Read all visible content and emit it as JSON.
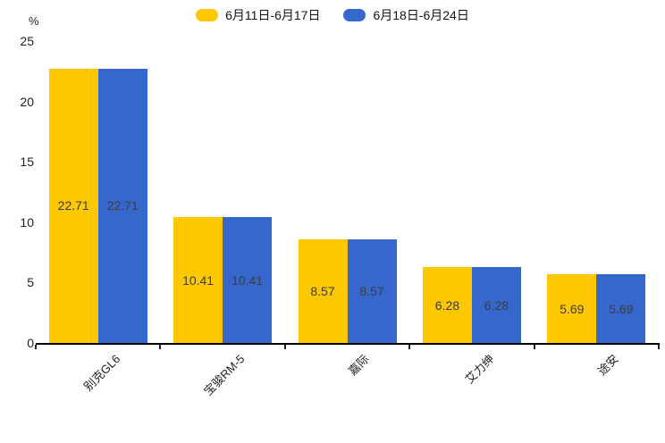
{
  "chart_data": {
    "type": "bar",
    "title": "",
    "ylabel": "%",
    "categories": [
      "别克GL6",
      "宝骏RM-5",
      "嘉际",
      "艾力绅",
      "途安"
    ],
    "series": [
      {
        "name": "6月11日-6月17日",
        "color": "#FDC800",
        "values": [
          22.71,
          10.41,
          8.57,
          6.28,
          5.69
        ]
      },
      {
        "name": "6月18日-6月24日",
        "color": "#3667CD",
        "values": [
          22.71,
          10.41,
          8.57,
          6.28,
          5.69
        ]
      }
    ],
    "ylim": [
      0,
      25
    ],
    "yticks": [
      0,
      5,
      10,
      15,
      20,
      25
    ],
    "grid": false,
    "legend_position": "top",
    "value_labels": "inside-center",
    "value_label_color": "#3d3d3d",
    "axis_color": "#000000",
    "background_color": "#ffffff"
  }
}
